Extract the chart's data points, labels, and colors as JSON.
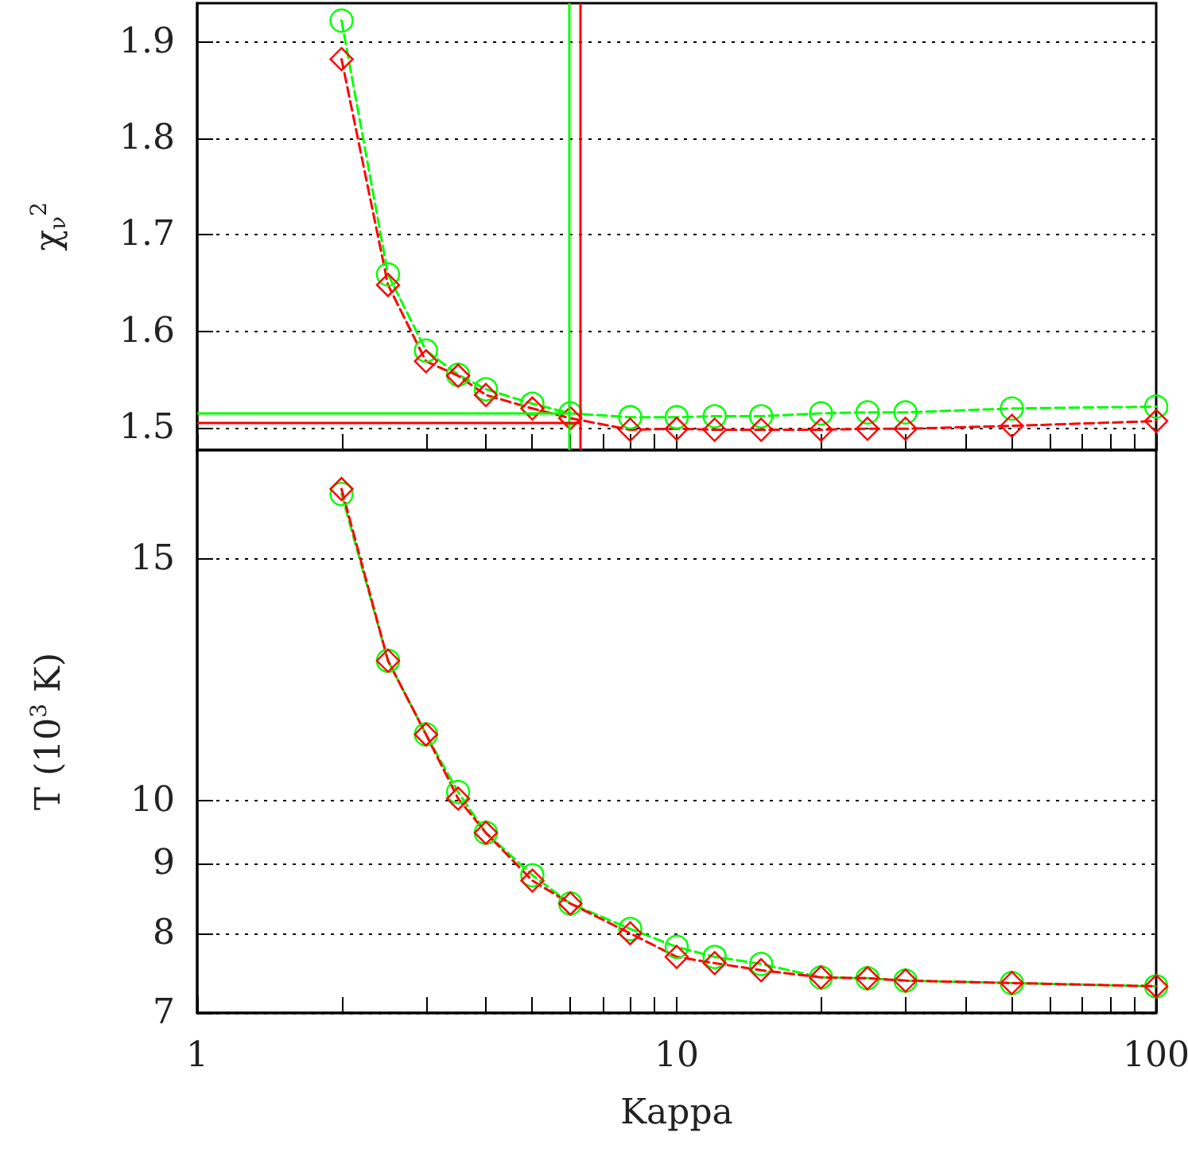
{
  "chart_data": [
    {
      "type": "line",
      "ylabel": "χ$_{ν}$$^{2}$",
      "tick_labels": "y",
      "log": "x",
      "grid": "y",
      "line_style": "dashed",
      "xlim": [
        1,
        100
      ],
      "xticks": [
        {
          "value": 1,
          "label": null
        },
        {
          "value": 2,
          "label": null
        },
        {
          "value": 3,
          "label": null
        },
        {
          "value": 4,
          "label": null
        },
        {
          "value": 5,
          "label": null
        },
        {
          "value": 6,
          "label": null
        },
        {
          "value": 7,
          "label": null
        },
        {
          "value": 8,
          "label": null
        },
        {
          "value": 9,
          "label": null
        },
        {
          "value": 10,
          "label": null
        },
        {
          "value": 20,
          "label": null
        },
        {
          "value": 30,
          "label": null
        },
        {
          "value": 40,
          "label": null
        },
        {
          "value": 50,
          "label": null
        },
        {
          "value": 60,
          "label": null
        },
        {
          "value": 70,
          "label": null
        },
        {
          "value": 80,
          "label": null
        },
        {
          "value": 90,
          "label": null
        },
        {
          "value": 100,
          "label": null
        }
      ],
      "ylim": [
        1.477,
        1.94
      ],
      "yticks": [
        1.5,
        1.6,
        1.7,
        1.8,
        1.9
      ],
      "x": [
        2,
        2.5,
        3,
        3.5,
        4,
        5,
        6,
        8,
        10,
        12,
        15,
        20,
        25,
        30,
        50,
        100
      ],
      "series": [
        {
          "color": "#00ff00",
          "marker": "circle",
          "values": [
            1.922,
            1.659,
            1.58,
            1.555,
            1.54,
            1.525,
            1.515,
            1.511,
            1.511,
            1.512,
            1.512,
            1.515,
            1.516,
            1.516,
            1.52,
            1.522
          ]
        },
        {
          "color": "#ff0000",
          "marker": "diamond",
          "values": [
            1.882,
            1.648,
            1.569,
            1.554,
            1.534,
            1.52,
            1.51,
            1.498,
            1.499,
            1.498,
            1.498,
            1.498,
            1.499,
            1.499,
            1.502,
            1.507
          ]
        }
      ],
      "ref_lines": [
        {
          "axis": "x",
          "value": 5.96,
          "color": "#00ff00",
          "line_style": "solid"
        },
        {
          "axis": "x",
          "value": 6.29,
          "color": "#ff0000",
          "line_style": "solid"
        },
        {
          "axis": "y",
          "value": 1.516,
          "color": "#00ff00",
          "line_style": "solid"
        },
        {
          "axis": "y",
          "value": 1.505,
          "color": "#ff0000",
          "line_style": "solid"
        }
      ]
    },
    {
      "type": "line",
      "xlabel": "Kappa",
      "ylabel": "T (10$^{3}$ K)",
      "log": "xy",
      "grid": "y",
      "line_style": "dashed",
      "xlim": [
        1,
        100
      ],
      "xticks": [
        1,
        {
          "value": 2,
          "label": null
        },
        {
          "value": 3,
          "label": null
        },
        {
          "value": 4,
          "label": null
        },
        {
          "value": 5,
          "label": null
        },
        {
          "value": 6,
          "label": null
        },
        {
          "value": 7,
          "label": null
        },
        {
          "value": 8,
          "label": null
        },
        {
          "value": 9,
          "label": null
        },
        10,
        {
          "value": 20,
          "label": null
        },
        {
          "value": 30,
          "label": null
        },
        {
          "value": 40,
          "label": null
        },
        {
          "value": 50,
          "label": null
        },
        {
          "value": 60,
          "label": null
        },
        {
          "value": 70,
          "label": null
        },
        {
          "value": 80,
          "label": null
        },
        {
          "value": 90,
          "label": null
        },
        100
      ],
      "ylim": [
        7,
        18
      ],
      "yticks": [
        7,
        8,
        9,
        10,
        15
      ],
      "x": [
        2,
        2.5,
        3,
        3.5,
        4,
        5,
        6,
        8,
        10,
        12,
        15,
        20,
        25,
        30,
        50,
        100
      ],
      "series": [
        {
          "color": "#00ff00",
          "marker": "circle",
          "values": [
            16.72,
            12.64,
            11.17,
            10.14,
            9.47,
            8.82,
            8.41,
            8.06,
            7.82,
            7.69,
            7.6,
            7.43,
            7.42,
            7.39,
            7.36,
            7.32
          ]
        },
        {
          "color": "#ff0000",
          "marker": "diamond",
          "values": [
            16.86,
            12.64,
            11.17,
            10.03,
            9.47,
            8.74,
            8.41,
            8.0,
            7.69,
            7.61,
            7.52,
            7.43,
            7.42,
            7.39,
            7.36,
            7.32
          ]
        }
      ]
    }
  ]
}
